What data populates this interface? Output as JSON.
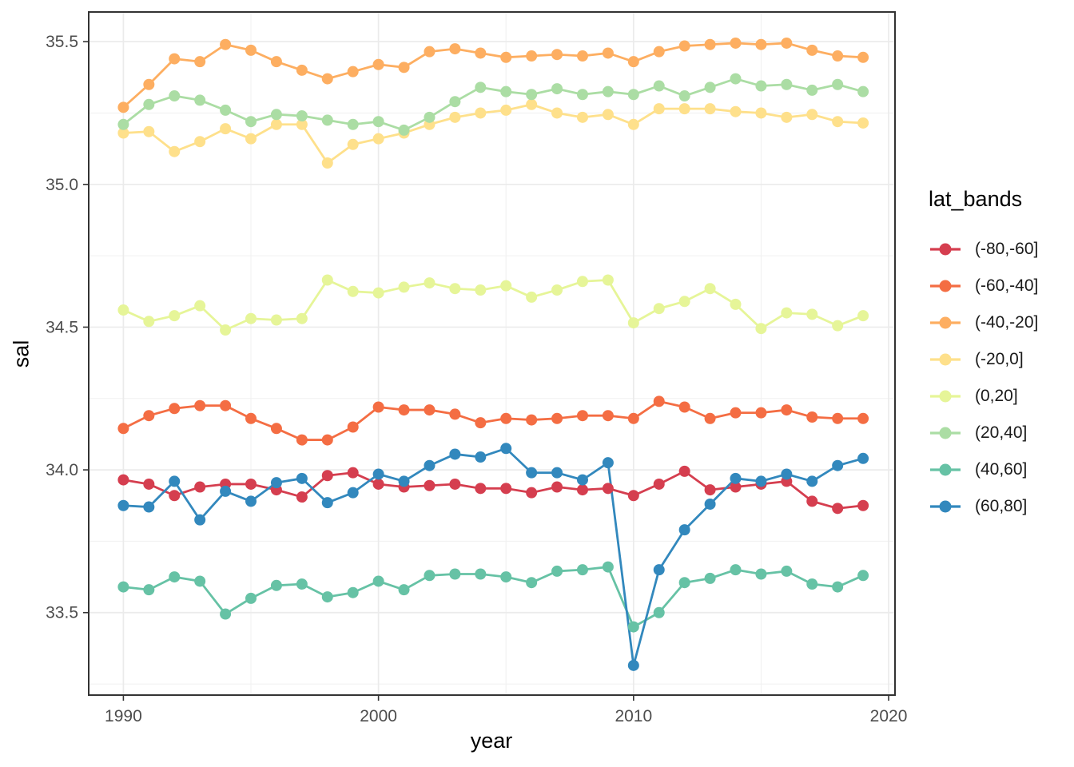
{
  "figure": {
    "background": "#ffffff",
    "panel_border_color": "#333333",
    "grid_major_color": "#ebebeb",
    "grid_minor_color": "#f0f0f0",
    "tick_color": "#333333",
    "tick_label_color": "#4d4d4d",
    "axis_title_color": "#000000"
  },
  "axes": {
    "x_title": "year",
    "y_title": "sal",
    "x_tick_labels": [
      "1990",
      "2000",
      "2010",
      "2020"
    ],
    "x_tick_values": [
      1990,
      2000,
      2010,
      2020
    ],
    "x_minor_values": [
      1995,
      2005,
      2015
    ],
    "y_tick_labels": [
      "33.5",
      "34.0",
      "34.5",
      "35.0",
      "35.5"
    ],
    "y_tick_values": [
      33.5,
      34.0,
      34.5,
      35.0,
      35.5
    ],
    "y_minor_values": [
      33.25,
      33.75,
      34.25,
      34.75,
      35.25
    ]
  },
  "legend": {
    "title": "lat_bands",
    "entries": [
      {
        "label": "(-80,-60]",
        "color": "#d53e4f"
      },
      {
        "label": "(-60,-40]",
        "color": "#f46d43"
      },
      {
        "label": "(-40,-20]",
        "color": "#fdae61"
      },
      {
        "label": "(-20,0]",
        "color": "#fee08b"
      },
      {
        "label": "(0,20]",
        "color": "#e6f598"
      },
      {
        "label": "(20,40]",
        "color": "#abdda4"
      },
      {
        "label": "(40,60]",
        "color": "#66c2a5"
      },
      {
        "label": "(60,80]",
        "color": "#3288bd"
      }
    ]
  },
  "chart_data": {
    "type": "line",
    "title": "",
    "xlabel": "year",
    "ylabel": "sal",
    "legend_title": "lat_bands",
    "legend_position": "right",
    "grid": true,
    "xlim": [
      1988.64,
      2020.25
    ],
    "ylim": [
      33.211,
      35.604
    ],
    "x": [
      1990,
      1991,
      1992,
      1993,
      1994,
      1995,
      1996,
      1997,
      1998,
      1999,
      2000,
      2001,
      2002,
      2003,
      2004,
      2005,
      2006,
      2007,
      2008,
      2009,
      2010,
      2011,
      2012,
      2013,
      2014,
      2015,
      2016,
      2017,
      2018,
      2019
    ],
    "series": [
      {
        "name": "(-80,-60]",
        "color": "#d53e4f",
        "values": [
          33.965,
          33.95,
          33.91,
          33.94,
          33.95,
          33.95,
          33.93,
          33.905,
          33.98,
          33.99,
          33.95,
          33.94,
          33.945,
          33.95,
          33.935,
          33.935,
          33.92,
          33.94,
          33.93,
          33.935,
          33.91,
          33.95,
          33.995,
          33.93,
          33.94,
          33.95,
          33.96,
          33.89,
          33.865,
          33.875
        ]
      },
      {
        "name": "(-60,-40]",
        "color": "#f46d43",
        "values": [
          34.145,
          34.19,
          34.215,
          34.225,
          34.225,
          34.18,
          34.145,
          34.105,
          34.105,
          34.15,
          34.22,
          34.21,
          34.21,
          34.195,
          34.165,
          34.18,
          34.175,
          34.18,
          34.19,
          34.19,
          34.18,
          34.24,
          34.22,
          34.18,
          34.2,
          34.2,
          34.21,
          34.185,
          34.18,
          34.18
        ]
      },
      {
        "name": "(-40,-20]",
        "color": "#fdae61",
        "values": [
          35.27,
          35.35,
          35.44,
          35.43,
          35.49,
          35.47,
          35.43,
          35.4,
          35.37,
          35.395,
          35.42,
          35.41,
          35.465,
          35.475,
          35.46,
          35.445,
          35.45,
          35.455,
          35.45,
          35.46,
          35.43,
          35.465,
          35.485,
          35.49,
          35.495,
          35.49,
          35.495,
          35.47,
          35.45,
          35.445
        ]
      },
      {
        "name": "(-20,0]",
        "color": "#fee08b",
        "values": [
          35.18,
          35.185,
          35.115,
          35.15,
          35.195,
          35.16,
          35.21,
          35.21,
          35.075,
          35.14,
          35.16,
          35.18,
          35.21,
          35.235,
          35.25,
          35.26,
          35.28,
          35.25,
          35.235,
          35.245,
          35.21,
          35.265,
          35.265,
          35.265,
          35.255,
          35.25,
          35.235,
          35.245,
          35.22,
          35.215
        ]
      },
      {
        "name": "(0,20]",
        "color": "#e6f598",
        "values": [
          34.56,
          34.52,
          34.54,
          34.575,
          34.49,
          34.53,
          34.525,
          34.53,
          34.665,
          34.625,
          34.62,
          34.64,
          34.655,
          34.635,
          34.63,
          34.645,
          34.605,
          34.63,
          34.66,
          34.665,
          34.515,
          34.565,
          34.59,
          34.635,
          34.58,
          34.495,
          34.55,
          34.545,
          34.505,
          34.54
        ]
      },
      {
        "name": "(20,40]",
        "color": "#abdda4",
        "values": [
          35.21,
          35.28,
          35.31,
          35.295,
          35.26,
          35.22,
          35.245,
          35.24,
          35.225,
          35.21,
          35.22,
          35.19,
          35.235,
          35.29,
          35.34,
          35.325,
          35.315,
          35.335,
          35.315,
          35.325,
          35.315,
          35.345,
          35.31,
          35.34,
          35.37,
          35.345,
          35.35,
          35.33,
          35.35,
          35.325
        ]
      },
      {
        "name": "(40,60]",
        "color": "#66c2a5",
        "values": [
          33.59,
          33.58,
          33.625,
          33.61,
          33.495,
          33.55,
          33.595,
          33.6,
          33.555,
          33.57,
          33.61,
          33.58,
          33.63,
          33.635,
          33.635,
          33.625,
          33.605,
          33.645,
          33.65,
          33.66,
          33.45,
          33.5,
          33.605,
          33.62,
          33.65,
          33.635,
          33.645,
          33.6,
          33.59,
          33.63
        ]
      },
      {
        "name": "(60,80]",
        "color": "#3288bd",
        "values": [
          33.875,
          33.87,
          33.96,
          33.825,
          33.925,
          33.89,
          33.955,
          33.97,
          33.885,
          33.92,
          33.985,
          33.96,
          34.015,
          34.055,
          34.045,
          34.075,
          33.99,
          33.99,
          33.965,
          34.025,
          33.315,
          33.65,
          33.79,
          33.88,
          33.97,
          33.96,
          33.985,
          33.96,
          34.015,
          34.04
        ]
      }
    ]
  }
}
